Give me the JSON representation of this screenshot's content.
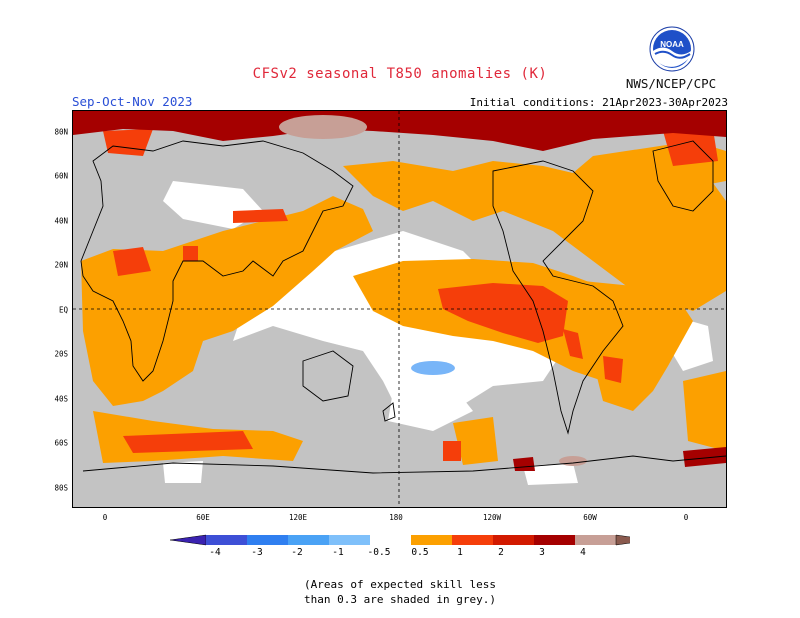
{
  "header": {
    "title": "CFSv2 seasonal T850 anomalies (K)",
    "season": "Sep-Oct-Nov 2023",
    "initial_conditions": "Initial conditions: 21Apr2023-30Apr2023",
    "agency": "NWS/NCEP/CPC",
    "logo_text": "NOAA"
  },
  "map": {
    "lat_labels": [
      "80N",
      "60N",
      "40N",
      "20N",
      "EQ",
      "20S",
      "40S",
      "60S",
      "80S"
    ],
    "lon_labels": [
      "0",
      "60E",
      "120E",
      "180",
      "120W",
      "60W",
      "0"
    ],
    "colors": {
      "grey": "#c3c3c3",
      "orange": "#fca000",
      "red_orange": "#f53e0a",
      "dark_red": "#a50000",
      "pink": "#c79f96",
      "light_blue": "#78b5f8"
    }
  },
  "colorbar": {
    "labels": [
      "-4",
      "-3",
      "-2",
      "-1",
      "-0.5",
      "0.5",
      "1",
      "2",
      "3",
      "4"
    ],
    "colors": [
      "#3a22b0",
      "#3d4fd6",
      "#2f7ff0",
      "#4aa2f5",
      "#7fc0fa",
      "#ffffff",
      "#fca000",
      "#f53e0a",
      "#d21a00",
      "#a50000",
      "#c79f96",
      "#8a5a4e"
    ]
  },
  "note": {
    "line1": "(Areas of expected skill less",
    "line2": "than 0.3 are shaded in grey.)"
  }
}
